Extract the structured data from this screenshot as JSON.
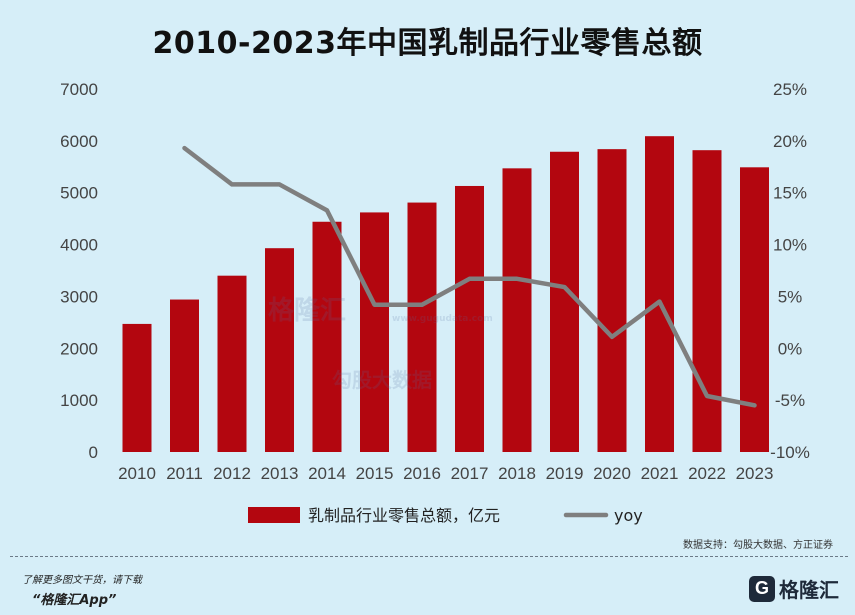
{
  "colors": {
    "bar": "#b3060f",
    "line": "#7f7f7f",
    "background": "#d6eef8"
  },
  "footer": {
    "source": "数据支持：勾股大数据、方正证券",
    "promo_line1": "了解更多图文干货，请下载",
    "promo_line2": "“格隆汇App”",
    "logo_text": "格隆汇"
  },
  "watermark": {
    "brand": "格隆汇",
    "site": "www.gugudata.com",
    "name": "勾股大数据"
  },
  "chart_data": {
    "type": "bar",
    "title": "2010-2023年中国乳制品行业零售总额",
    "categories": [
      "2010",
      "2011",
      "2012",
      "2013",
      "2014",
      "2015",
      "2016",
      "2017",
      "2018",
      "2019",
      "2020",
      "2021",
      "2022",
      "2023"
    ],
    "series": [
      {
        "name": "乳制品行业零售总额，亿元",
        "type": "bar",
        "axis": "left",
        "values": [
          2470,
          2940,
          3400,
          3930,
          4440,
          4620,
          4810,
          5130,
          5470,
          5790,
          5840,
          6090,
          5820,
          5490
        ]
      },
      {
        "name": "yoy",
        "type": "line",
        "axis": "right",
        "values": [
          null,
          19.3,
          15.8,
          15.8,
          13.3,
          4.2,
          4.2,
          6.7,
          6.7,
          5.9,
          1.1,
          4.5,
          -4.6,
          -5.5
        ]
      }
    ],
    "left_axis": {
      "min": 0,
      "max": 7000,
      "ticks": [
        "0",
        "1000",
        "2000",
        "3000",
        "4000",
        "5000",
        "6000",
        "7000"
      ]
    },
    "right_axis": {
      "min": -10,
      "max": 25,
      "ticks": [
        "-10%",
        "-5%",
        "0%",
        "5%",
        "10%",
        "15%",
        "20%",
        "25%"
      ]
    },
    "grid": false,
    "legend_position": "bottom"
  }
}
